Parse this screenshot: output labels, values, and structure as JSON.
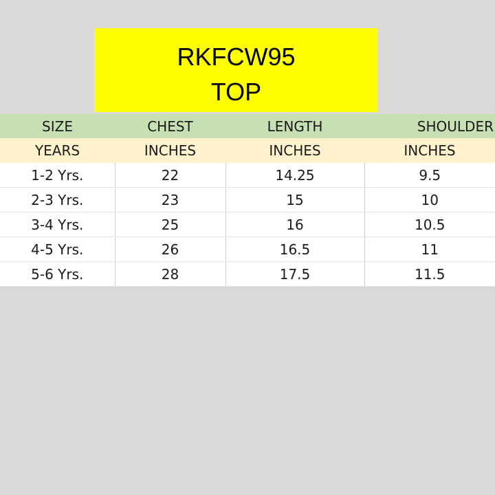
{
  "title": {
    "code": "RKFCW95",
    "product": "TOP"
  },
  "table": {
    "headers": [
      "SIZE",
      "CHEST",
      "LENGTH",
      "SHOULDER"
    ],
    "units": [
      "YEARS",
      "INCHES",
      "INCHES",
      "INCHES"
    ],
    "rows": [
      [
        "1-2 Yrs.",
        "22",
        "14.25",
        "9.5"
      ],
      [
        "2-3 Yrs.",
        "23",
        "15",
        "10"
      ],
      [
        "3-4 Yrs.",
        "25",
        "16",
        "10.5"
      ],
      [
        "4-5 Yrs.",
        "26",
        "16.5",
        "11"
      ],
      [
        "5-6 Yrs.",
        "28",
        "17.5",
        "11.5"
      ]
    ]
  },
  "colors": {
    "background": "#d9d9d9",
    "title_fill": "#ffff00",
    "header_fill": "#c6e0b4",
    "unit_fill": "#fff2cc",
    "row_fill": "#ffffff"
  }
}
